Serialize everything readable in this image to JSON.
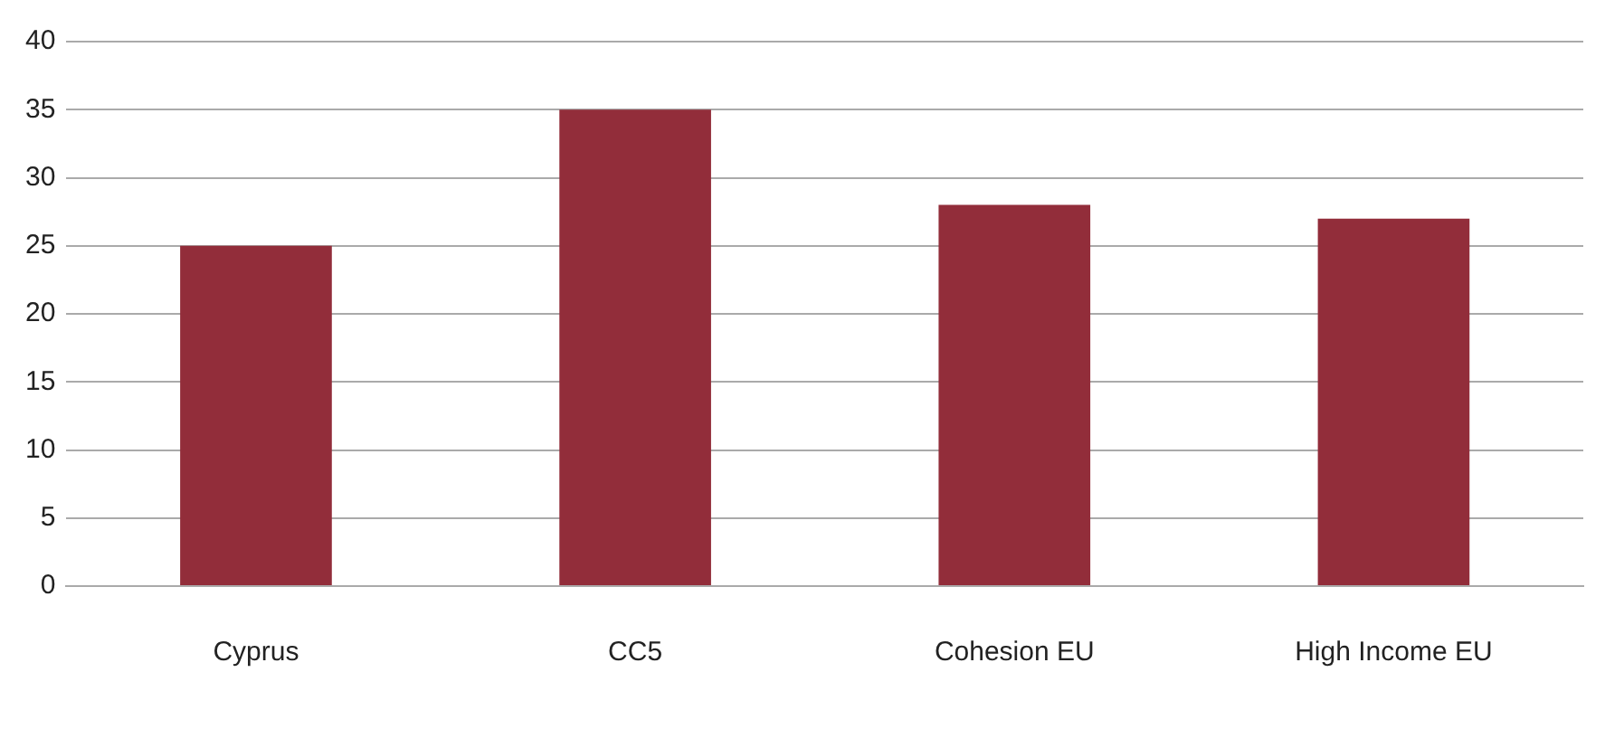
{
  "chart_data": {
    "type": "bar",
    "categories": [
      "Cyprus",
      "CC5",
      "Cohesion EU",
      "High Income EU"
    ],
    "values": [
      25,
      35,
      28,
      27
    ],
    "color": "#922d3a",
    "ylim": [
      0,
      40
    ],
    "yticks": [
      0,
      5,
      10,
      15,
      20,
      25,
      30,
      35,
      40
    ],
    "grid": "y",
    "legend": false
  }
}
